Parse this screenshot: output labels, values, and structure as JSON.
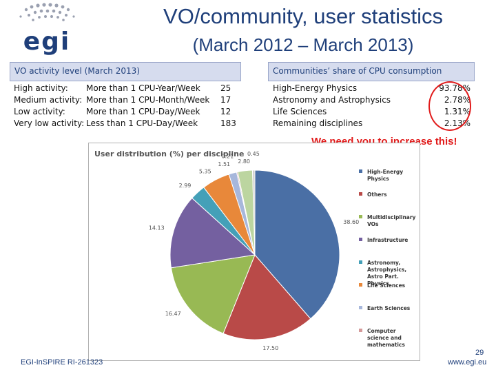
{
  "logo": {
    "text": "egi"
  },
  "title": {
    "line1": "VO/community, user statistics",
    "line2": "(March 2012 – March 2013)"
  },
  "vo_table": {
    "header": "VO activity level (March 2013)",
    "rows": [
      {
        "level": "High activity:",
        "criterion": "More than 1 CPU-Year/Week",
        "count": "25"
      },
      {
        "level": "Medium activity:",
        "criterion": "More than 1 CPU-Month/Week",
        "count": "17"
      },
      {
        "level": "Low activity:",
        "criterion": "More than 1 CPU-Day/Week",
        "count": "12"
      },
      {
        "level": "Very low activity:",
        "criterion": "Less than 1 CPU-Day/Week",
        "count": "183"
      }
    ]
  },
  "cpu_table": {
    "header": "Communities’ share of CPU consumption",
    "rows": [
      {
        "community": "High-Energy Physics",
        "share": "93.78%"
      },
      {
        "community": "Astronomy and Astrophysics",
        "share": "2.78%"
      },
      {
        "community": "Life Sciences",
        "share": "1.31%"
      },
      {
        "community": "Remaining disciplines",
        "share": "2.13%"
      }
    ]
  },
  "callout": "We need you to increase this!",
  "colors": {
    "title": "#1f3f7a",
    "callout": "#e11b1b",
    "header_bg": "#d6dcee",
    "hep": "#4a6fa5",
    "others": "#b94a48",
    "multi": "#98b954",
    "infra": "#7460a0",
    "astro": "#44a0b8",
    "life": "#e8883a",
    "earth": "#a7b7db",
    "comp": "#d49a9a",
    "extra": "#bcd5a0"
  },
  "chart_data": {
    "type": "pie",
    "title": "User distribution (%) per discipline",
    "slices": [
      {
        "label": "High-Energy Physics",
        "value": 38.6,
        "value_label": "38.60",
        "color": "#4a6fa5"
      },
      {
        "label": "Others",
        "value": 17.5,
        "value_label": "17.50",
        "color": "#b94a48"
      },
      {
        "label": "Multidisciplinary VOs",
        "value": 16.47,
        "value_label": "16.47",
        "color": "#98b954"
      },
      {
        "label": "Infrastructure",
        "value": 14.13,
        "value_label": "14.13",
        "color": "#7460a0"
      },
      {
        "label": "Astronomy, Astrophysics, Astro Part. Physics",
        "value": 2.99,
        "value_label": "2.99",
        "color": "#44a0b8"
      },
      {
        "label": "Life Sciences",
        "value": 5.35,
        "value_label": "5.35",
        "color": "#e8883a"
      },
      {
        "label": "Earth Sciences",
        "value": 1.51,
        "value_label": "1.51",
        "color": "#a7b7db"
      },
      {
        "label": "Computer science and mathematics",
        "value": 0.21,
        "value_label": "0.21",
        "color": "#d49a9a"
      },
      {
        "label": "",
        "value": 2.8,
        "value_label": "2.80",
        "color": "#bcd5a0"
      },
      {
        "label": "",
        "value": 0.45,
        "value_label": "0.45",
        "color": "#cfcfcf"
      }
    ],
    "legend": [
      {
        "label": "High-Energy Physics",
        "color": "#4a6fa5"
      },
      {
        "label": "Others",
        "color": "#b94a48"
      },
      {
        "label": "Multidisciplinary VOs",
        "color": "#98b954"
      },
      {
        "label": "Infrastructure",
        "color": "#7460a0"
      },
      {
        "label": "Astronomy, Astrophysics, Astro Part. Physics",
        "color": "#44a0b8"
      },
      {
        "label": "Life Sciences",
        "color": "#e8883a"
      },
      {
        "label": "Earth Sciences",
        "color": "#a7b7db"
      },
      {
        "label": "Computer science and mathematics",
        "color": "#d49a9a"
      }
    ],
    "legend_position": "right"
  },
  "footer": {
    "project": "EGI-InSPIRE RI-261323",
    "page": "29",
    "url": "www.egi.eu"
  }
}
